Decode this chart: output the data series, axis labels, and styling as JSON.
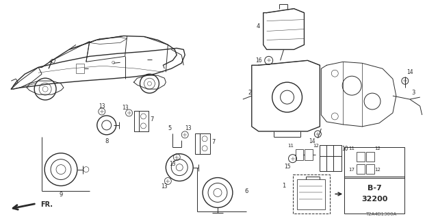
{
  "bg_color": "#ffffff",
  "fig_width": 6.4,
  "fig_height": 3.2,
  "dpi": 100,
  "diagram_code": "T2A4B1300A",
  "gray": "#2a2a2a",
  "lgray": "#888888"
}
